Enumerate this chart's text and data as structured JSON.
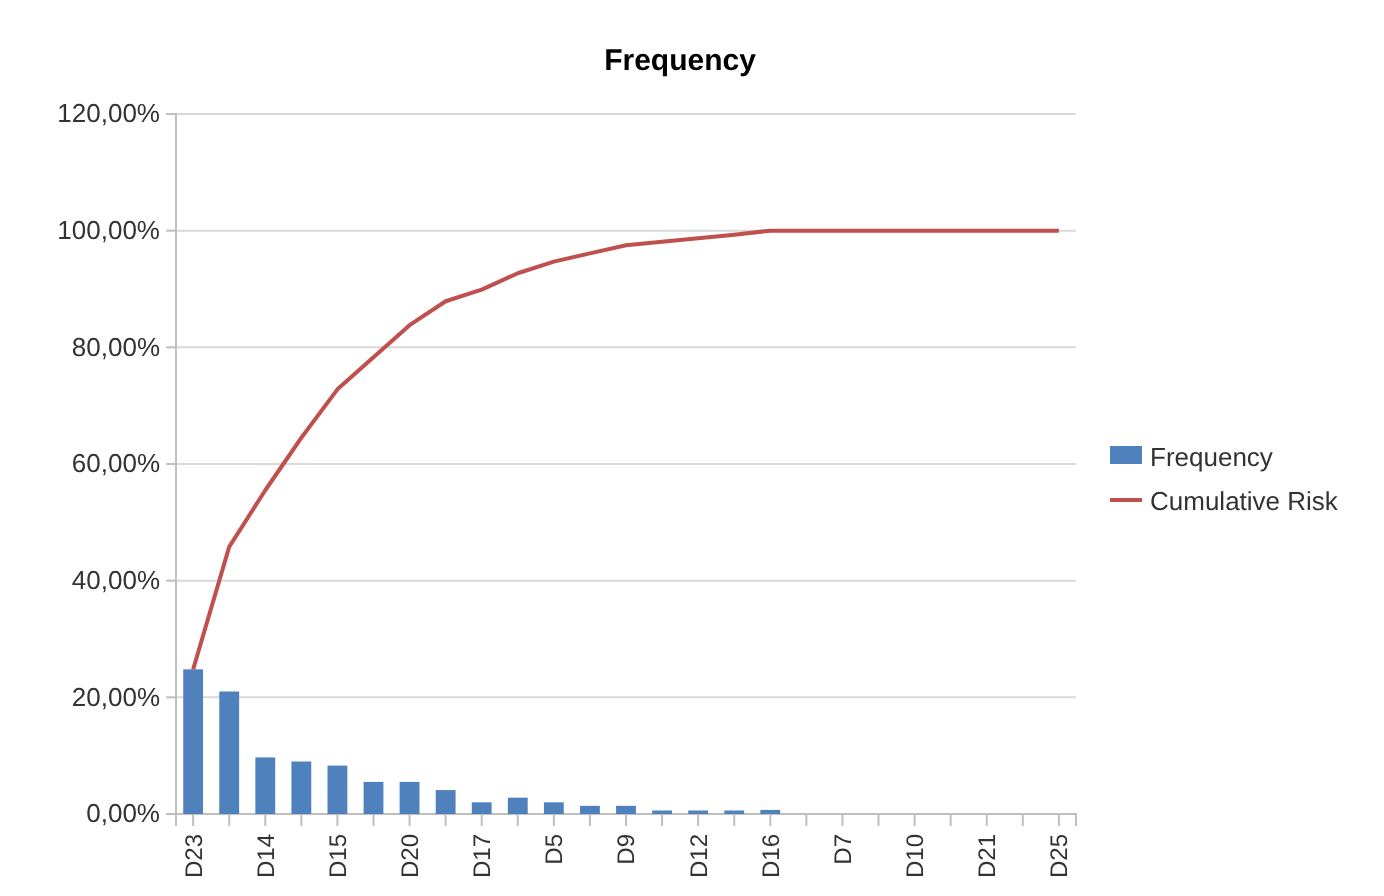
{
  "chart_data": {
    "type": "bar",
    "title": "Frequency",
    "categories": [
      "D23",
      null,
      "D14",
      null,
      "D15",
      null,
      "D20",
      null,
      "D17",
      null,
      "D5",
      null,
      "D9",
      null,
      "D12",
      null,
      "D16",
      null,
      "D7",
      null,
      "D10",
      null,
      "D21",
      null,
      "D25"
    ],
    "series": [
      {
        "name": "Frequency",
        "color": "#4f81bd",
        "values": [
          24.8,
          21,
          9.7,
          9,
          8.3,
          5.5,
          5.5,
          4.1,
          2,
          2.8,
          2,
          1.4,
          1.4,
          0.6,
          0.6,
          0.6,
          0.7,
          0,
          0,
          0,
          0,
          0,
          0,
          0,
          0
        ]
      },
      {
        "name": "Cumulative Risk",
        "type": "line",
        "color": "#c0504d",
        "values": [
          24.8,
          45.8,
          55.5,
          64.5,
          72.8,
          78.3,
          83.8,
          87.9,
          89.9,
          92.7,
          94.7,
          96.1,
          97.5,
          98.1,
          98.7,
          99.3,
          100,
          100,
          100,
          100,
          100,
          100,
          100,
          100,
          100
        ]
      }
    ],
    "ylim": [
      0,
      120
    ],
    "yticks": [
      {
        "value": 0,
        "label": "0,00%"
      },
      {
        "value": 20,
        "label": "20,00%"
      },
      {
        "value": 40,
        "label": "40,00%"
      },
      {
        "value": 60,
        "label": "60,00%"
      },
      {
        "value": 80,
        "label": "80,00%"
      },
      {
        "value": 100,
        "label": "100,00%"
      },
      {
        "value": 120,
        "label": "120,00%"
      }
    ],
    "grid": "y",
    "legend": "right",
    "marker": "none"
  }
}
